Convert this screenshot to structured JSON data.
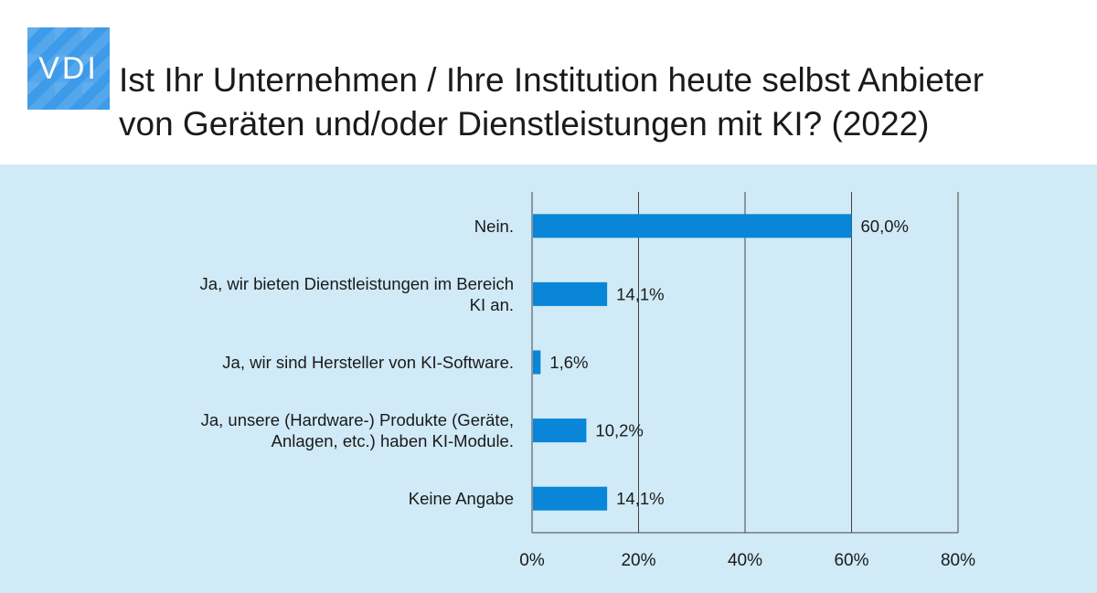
{
  "logo": {
    "text": "VDI"
  },
  "title": {
    "line1": "Ist Ihr Unternehmen / Ihre Institution heute selbst Anbieter",
    "line2": "von Geräten und/oder Dienstleistungen mit KI? (2022)"
  },
  "colors": {
    "bar": "#0a86d8",
    "panel_bg": "#d0eaf7",
    "logo_bg": "#3d9be9"
  },
  "chart_data": {
    "type": "bar",
    "orientation": "horizontal",
    "categories": [
      "Nein.",
      "Ja, wir bieten Dienstleistungen im Bereich KI an.",
      "Ja, wir sind Hersteller von KI-Software.",
      "Ja, unsere (Hardware-) Produkte (Geräte, Anlagen, etc.) haben KI-Module.",
      "Keine Angabe"
    ],
    "category_lines": [
      [
        "Nein."
      ],
      [
        "Ja, wir bieten Dienstleistungen im Bereich",
        "KI an."
      ],
      [
        "Ja, wir sind Hersteller von KI-Software."
      ],
      [
        "Ja, unsere (Hardware-) Produkte (Geräte,",
        "Anlagen, etc.) haben KI-Module."
      ],
      [
        "Keine Angabe"
      ]
    ],
    "values": [
      60.0,
      14.1,
      1.6,
      10.2,
      14.1
    ],
    "data_labels": [
      "60,0%",
      "14,1%",
      "1,6%",
      "10,2%",
      "14,1%"
    ],
    "xlim": [
      0,
      80
    ],
    "xticks": [
      0,
      20,
      40,
      60,
      80
    ],
    "xtick_labels": [
      "0%",
      "20%",
      "40%",
      "60%",
      "80%"
    ],
    "grid": "vertical"
  }
}
